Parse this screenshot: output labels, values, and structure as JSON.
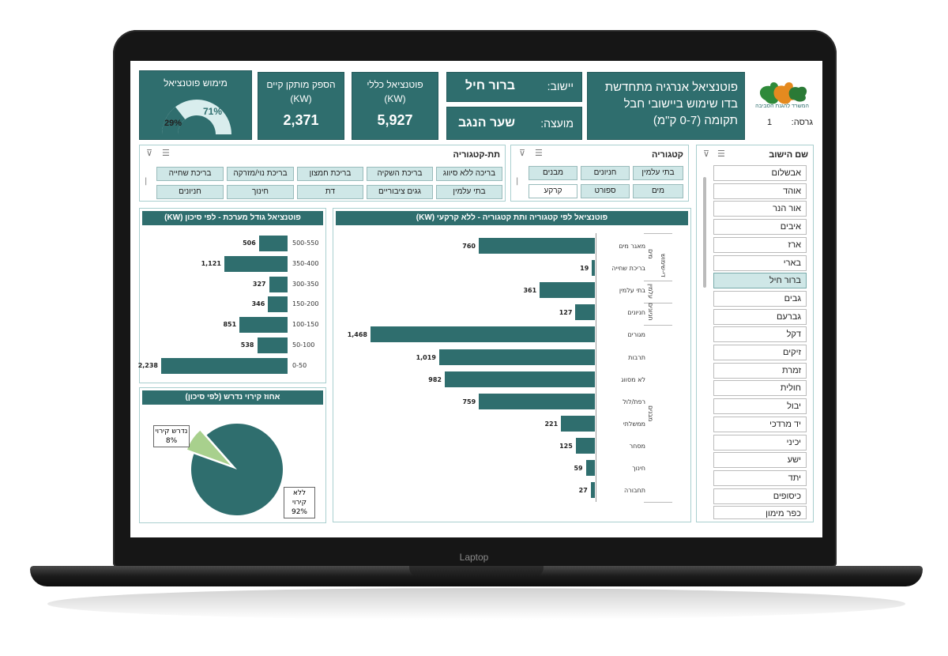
{
  "laptop": {
    "brand": "Laptop"
  },
  "header": {
    "ministry": "המשרד להגנת הסביבה",
    "title": "פוטנציאל אנרגיה מתחדשת בדו שימוש ביישובי חבל תקומה (0-7 ק\"מ)",
    "version_label": "גרסה:",
    "version_value": "1"
  },
  "kpis": {
    "settlement_label": "יישוב:",
    "settlement_value": "ברור חיל",
    "council_label": "מועצה:",
    "council_value": "שער הנגב",
    "total_potential_label": "פוטנציאל כללי (KW)",
    "total_potential_value": "5,927",
    "installed_label": "הספק מותקן קיים (KW)",
    "installed_value": "2,371",
    "realization_label": "מימוש פוטנציאל",
    "realization_percent": 29,
    "realization_text": "29%",
    "remaining_text": "71%"
  },
  "slicers": {
    "settlement": {
      "title": "שם הישוב",
      "items": [
        "אבשלום",
        "אוהד",
        "אור הנר",
        "איבים",
        "ארז",
        "בארי",
        "ברור חיל",
        "גבים",
        "גברעם",
        "דקל",
        "זיקים",
        "זמרת",
        "חולית",
        "יבול",
        "יד מרדכי",
        "יכיני",
        "ישע",
        "יתד",
        "כיסופים",
        "כפר מימון"
      ],
      "selected": "ברור חיל"
    },
    "category": {
      "title": "קטגוריה",
      "items": [
        "בתי עלמין",
        "חניונים",
        "מבנים",
        "מים",
        "ספורט",
        "קרקע"
      ]
    },
    "subcategory": {
      "title": "תת-קטגוריה",
      "items": [
        "בריכה ללא סיווג",
        "בריכת השקיה",
        "בריכת חמצון",
        "בריכת נוי/מזרקה",
        "בריכת שחייה",
        "בתי עלמין",
        "גגים ציבוריים",
        "דת",
        "חינוך",
        "חניונים"
      ]
    }
  },
  "colors": {
    "accent": "#2f6e6e",
    "selected_slicer": "#cfe7e7",
    "minor_slice": "#a8d08d"
  },
  "chart_data": [
    {
      "type": "bar",
      "orientation": "horizontal",
      "title": "פוטנציאל גודל מערכת - לפי סיכון (KW)",
      "categories": [
        "500-550",
        "350-400",
        "300-350",
        "150-200",
        "100-150",
        "50-100",
        "0-50"
      ],
      "values": [
        506,
        1121,
        327,
        346,
        851,
        538,
        2238
      ],
      "value_labels": [
        "506",
        "1,121",
        "327",
        "346",
        "851",
        "538",
        "2,238"
      ]
    },
    {
      "type": "bar",
      "orientation": "horizontal",
      "title": "פוטנציאל לפי קטגוריה ותת קטגוריה - ללא קרקעי (KW)",
      "groups": [
        {
          "name": "מים",
          "categories": [
            "מאגר מים",
            "בריכת שחייה"
          ]
        },
        {
          "name": "עלמין",
          "categories": [
            "בתי עלמין"
          ]
        },
        {
          "name": "חניונים",
          "categories": [
            "חניונים"
          ]
        },
        {
          "name": "מבנים",
          "categories": [
            "מגורים",
            "תרבות",
            "לא מסווג",
            "רפת/לול",
            "ממשלתי",
            "מסחר",
            "חינוך",
            "תחבורה"
          ]
        }
      ],
      "extra_group_label": "די-שימוש",
      "categories": [
        "מאגר מים",
        "בריכת שחייה",
        "בתי עלמין",
        "חניונים",
        "מגורים",
        "תרבות",
        "לא מסווג",
        "רפת/לול",
        "ממשלתי",
        "מסחר",
        "חינוך",
        "תחבורה"
      ],
      "values": [
        760,
        19,
        361,
        127,
        1468,
        1019,
        982,
        759,
        221,
        125,
        59,
        27
      ],
      "value_labels": [
        "760",
        "19",
        "361",
        "127",
        "1,468",
        "1,019",
        "982",
        "759",
        "221",
        "125",
        "59",
        "27"
      ]
    },
    {
      "type": "pie",
      "title": "אחוז קירוי נדרש (לפי סיכון)",
      "slices": [
        {
          "name": "נדרש קירוי",
          "value": 8,
          "label": "8%"
        },
        {
          "name": "ללא קירוי",
          "value": 92,
          "label": "92%"
        }
      ]
    }
  ]
}
